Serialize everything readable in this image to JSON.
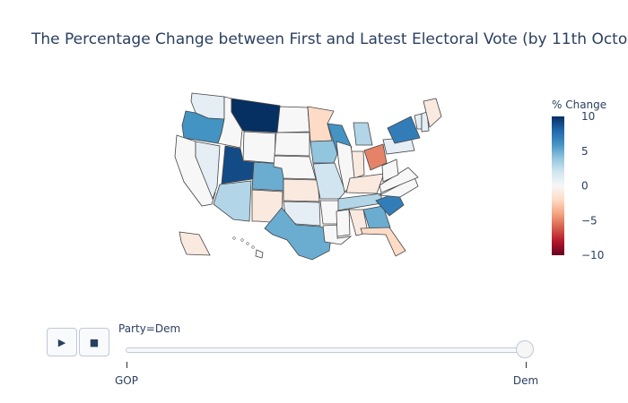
{
  "chart_data": {
    "type": "choropleth",
    "title": "The Percentage Change between First and Latest Electoral Vote (by 11th Octo",
    "colorbar": {
      "title": "% Change",
      "range": [
        -10,
        10
      ],
      "ticks": [
        "10",
        "5",
        "0",
        "−5",
        "−10"
      ],
      "colors": [
        "#053061",
        "#2166ac",
        "#4393c3",
        "#92c5de",
        "#d1e5f0",
        "#f7f7f7",
        "#fddbc7",
        "#f4a582",
        "#d6604d",
        "#b2182b",
        "#67001f"
      ]
    },
    "frame": "Dem",
    "states": [
      {
        "name": "WA",
        "value": 1
      },
      {
        "name": "OR",
        "value": 6
      },
      {
        "name": "CA",
        "value": 0
      },
      {
        "name": "NV",
        "value": 1
      },
      {
        "name": "ID",
        "value": 0
      },
      {
        "name": "MT",
        "value": 10
      },
      {
        "name": "WY",
        "value": 0
      },
      {
        "name": "UT",
        "value": 9
      },
      {
        "name": "AZ",
        "value": 3
      },
      {
        "name": "CO",
        "value": 5
      },
      {
        "name": "NM",
        "value": -1
      },
      {
        "name": "ND",
        "value": 0
      },
      {
        "name": "SD",
        "value": 0
      },
      {
        "name": "NE",
        "value": 0
      },
      {
        "name": "KS",
        "value": -1
      },
      {
        "name": "OK",
        "value": 1
      },
      {
        "name": "TX",
        "value": 5
      },
      {
        "name": "MN",
        "value": -2
      },
      {
        "name": "IA",
        "value": 4
      },
      {
        "name": "MO",
        "value": 2
      },
      {
        "name": "AR",
        "value": 0
      },
      {
        "name": "LA",
        "value": 0
      },
      {
        "name": "WI",
        "value": 6
      },
      {
        "name": "IL",
        "value": 0
      },
      {
        "name": "MI",
        "value": 3
      },
      {
        "name": "IN",
        "value": -1
      },
      {
        "name": "OH",
        "value": -5
      },
      {
        "name": "KY",
        "value": -1
      },
      {
        "name": "TN",
        "value": 3
      },
      {
        "name": "MS",
        "value": 0
      },
      {
        "name": "AL",
        "value": -1
      },
      {
        "name": "GA",
        "value": 5
      },
      {
        "name": "FL",
        "value": -2
      },
      {
        "name": "SC",
        "value": 7
      },
      {
        "name": "NC",
        "value": 0
      },
      {
        "name": "VA",
        "value": 0
      },
      {
        "name": "WV",
        "value": 0
      },
      {
        "name": "PA",
        "value": 1
      },
      {
        "name": "NY",
        "value": 7
      },
      {
        "name": "VT",
        "value": 1
      },
      {
        "name": "NH",
        "value": 1
      },
      {
        "name": "ME",
        "value": -1
      },
      {
        "name": "AK",
        "value": -1
      },
      {
        "name": "HI",
        "value": 0
      }
    ]
  },
  "controls": {
    "play_icon": "▶",
    "stop_icon": "■",
    "slider_label": "Party=Dem",
    "slider_ticks": [
      "GOP",
      "Dem"
    ]
  }
}
